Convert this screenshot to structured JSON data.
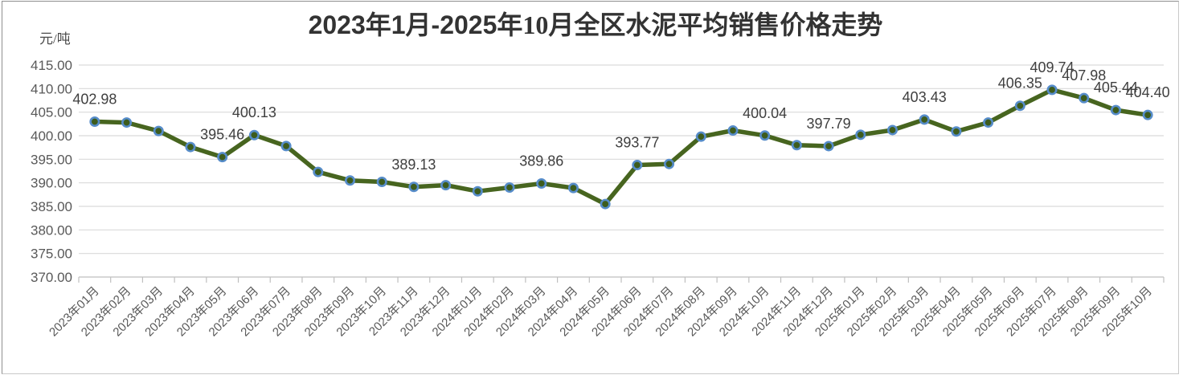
{
  "chart_data": {
    "type": "line",
    "title": "2023年1月-2025年10月全区水泥平均销售价格走势",
    "title_part1": "2023年1月-2025",
    "title_part2": "年10月全区水泥平均销售价格走势",
    "unit_label": "元/吨",
    "categories": [
      "2023年01月",
      "2023年02月",
      "2023年03月",
      "2023年04月",
      "2023年05月",
      "2023年06月",
      "2023年07月",
      "2023年08月",
      "2023年09月",
      "2023年10月",
      "2023年11月",
      "2023年12月",
      "2024年01月",
      "2024年02月",
      "2024年03月",
      "2024年04月",
      "2024年05月",
      "2024年06月",
      "2024年07月",
      "2024年08月",
      "2024年09月",
      "2024年10月",
      "2024年11月",
      "2024年12月",
      "2025年01月",
      "2025年02月",
      "2025年03月",
      "2025年04月",
      "2025年05月",
      "2025年06月",
      "2025年07月",
      "2025年08月",
      "2025年09月",
      "2025年10月"
    ],
    "values": [
      402.98,
      402.8,
      401.0,
      397.6,
      395.46,
      400.13,
      397.8,
      392.3,
      390.5,
      390.2,
      389.13,
      389.5,
      388.2,
      389.0,
      389.86,
      388.9,
      385.5,
      393.77,
      394.0,
      399.8,
      401.1,
      400.04,
      398.0,
      397.79,
      400.2,
      401.2,
      403.43,
      400.9,
      402.8,
      406.35,
      409.74,
      407.98,
      405.44,
      404.4
    ],
    "data_labels": [
      "402.98",
      null,
      null,
      null,
      "395.46",
      "400.13",
      null,
      null,
      null,
      null,
      "389.13",
      null,
      null,
      null,
      "389.86",
      null,
      null,
      "393.77",
      null,
      null,
      null,
      "400.04",
      null,
      "397.79",
      null,
      null,
      "403.43",
      null,
      null,
      "406.35",
      "409.74",
      "407.98",
      "405.44",
      "404.40"
    ],
    "ylim": [
      370,
      415
    ],
    "ytick_step": 5,
    "grid": true,
    "legend": "none",
    "x_label_rotation_deg": -45,
    "colors": {
      "line": "#47651f",
      "marker_fill": "#3d5c1d",
      "marker_ring": "#568cc9",
      "grid": "#d9d9d9",
      "axis": "#bfbfbf",
      "tick_label": "#595959",
      "data_label": "#3f3f3f",
      "title": "#333333"
    }
  }
}
